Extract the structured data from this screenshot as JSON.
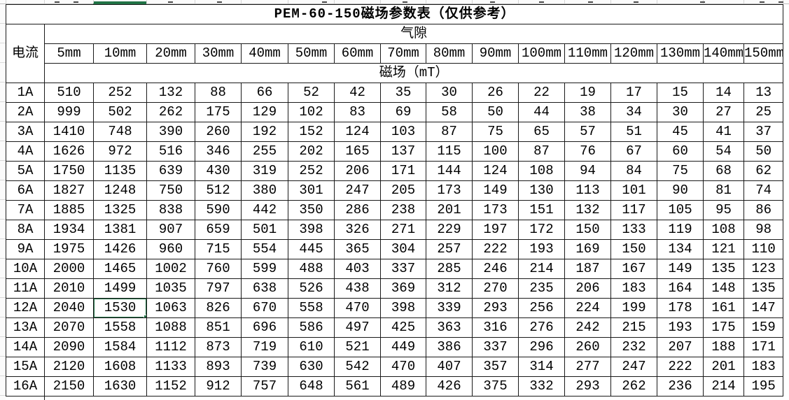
{
  "title": "PEM-60-150磁场参数表（仅供参考）",
  "table": {
    "corner_header": "电流",
    "group_header": "气隙",
    "unit_header": "磁场（mT）",
    "gap_headers": [
      "5mm",
      "10mm",
      "20mm",
      "30mm",
      "40mm",
      "50mm",
      "60mm",
      "70mm",
      "80mm",
      "90mm",
      "100mm",
      "110mm",
      "120mm",
      "130mm",
      "140mm",
      "150mm"
    ],
    "rows": [
      {
        "current": "1A",
        "values": [
          "510",
          "252",
          "132",
          "88",
          "66",
          "52",
          "42",
          "35",
          "30",
          "26",
          "22",
          "19",
          "17",
          "15",
          "14",
          "13"
        ]
      },
      {
        "current": "2A",
        "values": [
          "999",
          "502",
          "262",
          "175",
          "129",
          "102",
          "83",
          "69",
          "58",
          "50",
          "44",
          "38",
          "34",
          "30",
          "27",
          "25"
        ]
      },
      {
        "current": "3A",
        "values": [
          "1410",
          "748",
          "390",
          "260",
          "192",
          "152",
          "124",
          "103",
          "87",
          "75",
          "65",
          "57",
          "51",
          "45",
          "41",
          "37"
        ]
      },
      {
        "current": "4A",
        "values": [
          "1626",
          "972",
          "516",
          "346",
          "255",
          "202",
          "165",
          "137",
          "115",
          "100",
          "87",
          "76",
          "67",
          "60",
          "54",
          "50"
        ]
      },
      {
        "current": "5A",
        "values": [
          "1750",
          "1135",
          "639",
          "430",
          "319",
          "252",
          "206",
          "171",
          "144",
          "124",
          "108",
          "94",
          "84",
          "75",
          "68",
          "62"
        ]
      },
      {
        "current": "6A",
        "values": [
          "1827",
          "1248",
          "750",
          "512",
          "380",
          "301",
          "247",
          "205",
          "173",
          "149",
          "130",
          "113",
          "101",
          "90",
          "81",
          "74"
        ]
      },
      {
        "current": "7A",
        "values": [
          "1885",
          "1325",
          "838",
          "590",
          "442",
          "350",
          "286",
          "238",
          "201",
          "173",
          "151",
          "132",
          "117",
          "105",
          "95",
          "86"
        ]
      },
      {
        "current": "8A",
        "values": [
          "1934",
          "1381",
          "907",
          "659",
          "501",
          "398",
          "326",
          "271",
          "229",
          "197",
          "172",
          "150",
          "133",
          "119",
          "108",
          "98"
        ]
      },
      {
        "current": "9A",
        "values": [
          "1975",
          "1426",
          "960",
          "715",
          "554",
          "445",
          "365",
          "304",
          "257",
          "222",
          "193",
          "169",
          "150",
          "134",
          "121",
          "110"
        ]
      },
      {
        "current": "10A",
        "values": [
          "2000",
          "1465",
          "1002",
          "760",
          "599",
          "488",
          "403",
          "337",
          "285",
          "246",
          "214",
          "187",
          "167",
          "149",
          "135",
          "123"
        ]
      },
      {
        "current": "11A",
        "values": [
          "2010",
          "1499",
          "1035",
          "797",
          "638",
          "526",
          "438",
          "369",
          "312",
          "270",
          "235",
          "206",
          "183",
          "164",
          "148",
          "135"
        ]
      },
      {
        "current": "12A",
        "values": [
          "2040",
          "1530",
          "1063",
          "826",
          "670",
          "558",
          "470",
          "398",
          "339",
          "293",
          "256",
          "224",
          "199",
          "178",
          "161",
          "147"
        ]
      },
      {
        "current": "13A",
        "values": [
          "2070",
          "1558",
          "1088",
          "851",
          "696",
          "586",
          "497",
          "425",
          "363",
          "316",
          "276",
          "242",
          "215",
          "193",
          "175",
          "159"
        ]
      },
      {
        "current": "14A",
        "values": [
          "2090",
          "1584",
          "1112",
          "873",
          "719",
          "610",
          "521",
          "449",
          "386",
          "337",
          "296",
          "260",
          "232",
          "207",
          "188",
          "171"
        ]
      },
      {
        "current": "15A",
        "values": [
          "2120",
          "1608",
          "1133",
          "893",
          "739",
          "630",
          "542",
          "470",
          "407",
          "357",
          "314",
          "277",
          "247",
          "222",
          "201",
          "183"
        ]
      },
      {
        "current": "16A",
        "values": [
          "2150",
          "1630",
          "1152",
          "912",
          "757",
          "648",
          "561",
          "489",
          "426",
          "375",
          "332",
          "293",
          "262",
          "236",
          "214",
          "195"
        ]
      }
    ]
  },
  "selected_cell": {
    "row_label": "12A",
    "column_label": "10mm",
    "value": "1530"
  },
  "colors": {
    "selection_green": "#217346",
    "grid_border": "#1a1a1a"
  }
}
